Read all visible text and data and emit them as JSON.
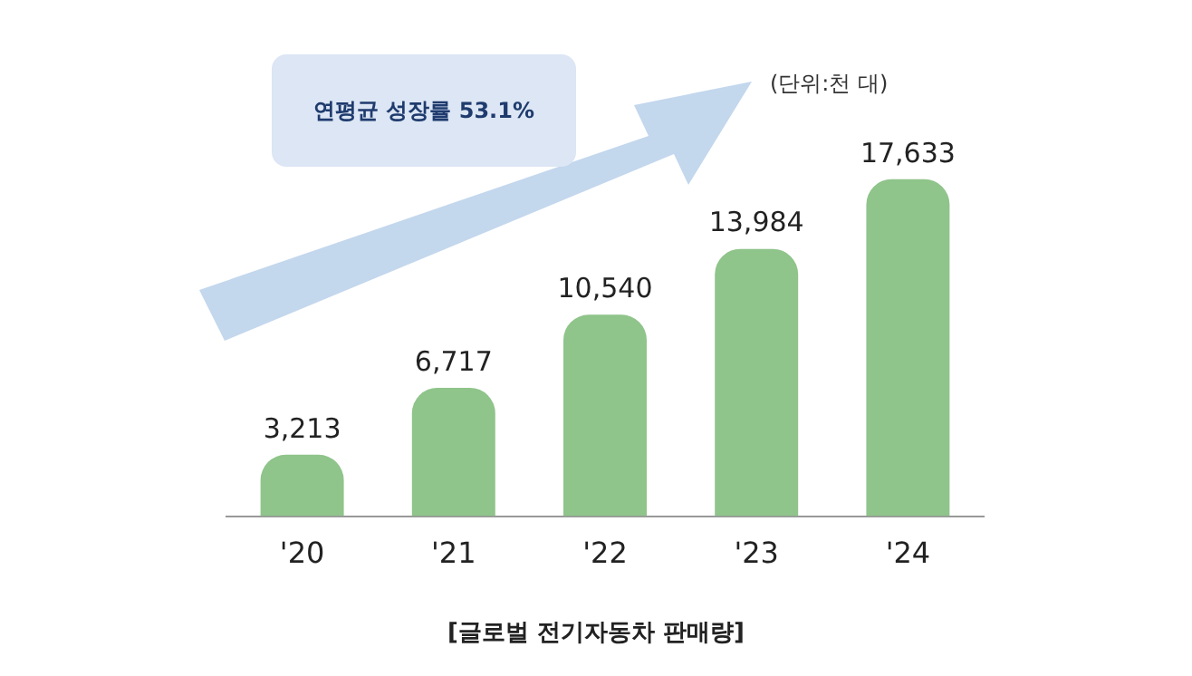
{
  "chart_data": {
    "type": "bar",
    "categories": [
      "'20",
      "'21",
      "'22",
      "'23",
      "'24"
    ],
    "values": [
      3213,
      6717,
      10540,
      13984,
      17633
    ],
    "color": "#8fc48a",
    "value_labels": [
      "3,213",
      "6,717",
      "10,540",
      "13,984",
      "17,633"
    ],
    "grid": false,
    "legend": false,
    "tick_labels": "x",
    "annotations": [
      "연평균 성장률 53.1%",
      "(단위:천 대)",
      "[글로벌 전기자동차 판매량]"
    ]
  }
}
